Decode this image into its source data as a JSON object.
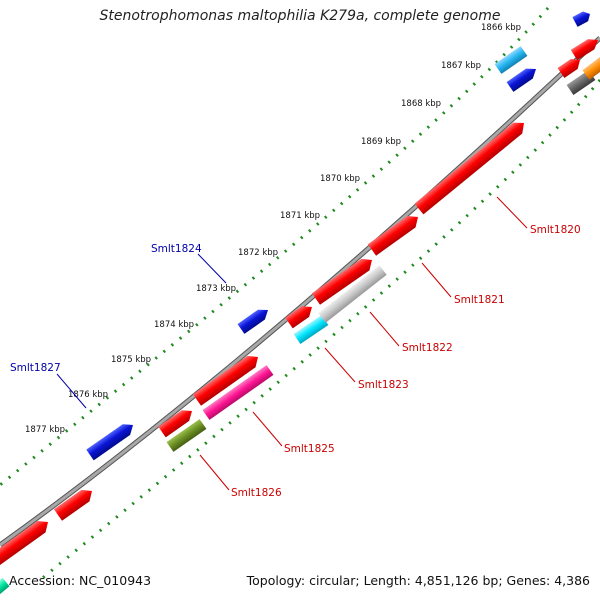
{
  "title": "Stenotrophomonas maltophilia K279a, complete genome",
  "footer": {
    "accession": "Accession: NC_010943",
    "topology": "Topology: circular; Length: 4,851,126 bp; Genes: 4,386"
  },
  "scale_labels": [
    "1866 kbp",
    "1867 kbp",
    "1868 kbp",
    "1869 kbp",
    "1870 kbp",
    "1871 kbp",
    "1872 kbp",
    "1873 kbp",
    "1874 kbp",
    "1875 kbp",
    "1876 kbp",
    "1877 kbp"
  ],
  "gene_labels": [
    {
      "name": "Smlt1820",
      "color": "#cc0000"
    },
    {
      "name": "Smlt1821",
      "color": "#cc0000"
    },
    {
      "name": "Smlt1822",
      "color": "#cc0000"
    },
    {
      "name": "Smlt1823",
      "color": "#cc0000"
    },
    {
      "name": "Smlt1825",
      "color": "#cc0000"
    },
    {
      "name": "Smlt1826",
      "color": "#cc0000"
    },
    {
      "name": "Smlt1824",
      "color": "#0000aa"
    },
    {
      "name": "Smlt1827",
      "color": "#0000aa"
    }
  ],
  "colors": {
    "backbone": "#8c8c8c",
    "scale_dots": "#1f8a1f",
    "red_gene": "#ff0000",
    "blue_gene": "#0a14d6",
    "cyan_gene": "#00e5ff",
    "sky_gene": "#22b5f0",
    "pink_gene": "#ff1493",
    "olive_gene": "#6b8e23",
    "gray_gene": "#c8c8c8",
    "dark_gray_gene": "#666666",
    "orange_gene": "#ff8c00",
    "green_gene": "#00e6a0"
  }
}
